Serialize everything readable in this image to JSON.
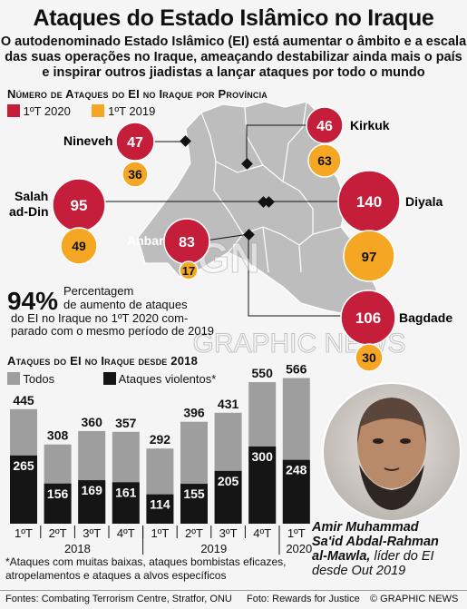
{
  "title": "Ataques do Estado Islâmico no Iraque",
  "subtitle_lines": [
    "O autodenominado Estado Islâmico (EI) está aumentar o âmbito e a escala",
    "das suas operações no Iraque, ameaçando destabilizar ainda mais o país",
    "e inspirar outros jiadistas a lançar ataques por todo o mundo"
  ],
  "colors": {
    "red": "#c41e3a",
    "orange": "#f5a623",
    "dark": "#151515",
    "grey": "#9e9e9e",
    "map": "#bdbdbd"
  },
  "map": {
    "heading": "Número de Ataques do EI no Iraque por Província",
    "legend": [
      "1ºT 2020",
      "1ºT 2019"
    ],
    "provinces": [
      {
        "name": "Nineveh",
        "q1_2020": 47,
        "q1_2019": 36
      },
      {
        "name": "Kirkuk",
        "q1_2020": 46,
        "q1_2019": 63
      },
      {
        "name_lines": [
          "Salah",
          "ad-Din"
        ],
        "q1_2020": 95,
        "q1_2019": 49
      },
      {
        "name": "Diyala",
        "q1_2020": 140,
        "q1_2019": 97
      },
      {
        "name": "Anbar",
        "q1_2020": 83,
        "q1_2019": 17
      },
      {
        "name": "Bagdade",
        "q1_2020": 106,
        "q1_2019": 30
      }
    ],
    "stat": {
      "value": "94%",
      "lines": [
        "Percentagem",
        "de aumento de ataques",
        "do EI no Iraque no 1ºT 2020 com-",
        "parado com o mesmo período de 2019"
      ]
    }
  },
  "chart_data": {
    "type": "bar",
    "title": "Ataques do EI no Iraque desde 2018",
    "categories": [
      "1ºT",
      "2ºT",
      "3ºT",
      "4ºT",
      "1ºT",
      "2ºT",
      "3ºT",
      "4ºT",
      "1ºT"
    ],
    "years": [
      {
        "label": "2018",
        "quarters": 4
      },
      {
        "label": "2019",
        "quarters": 4
      },
      {
        "label": "2020",
        "quarters": 1
      }
    ],
    "series": [
      {
        "name": "Todos",
        "values": [
          445,
          308,
          360,
          357,
          292,
          396,
          431,
          550,
          566
        ]
      },
      {
        "name": "Ataques violentos*",
        "values": [
          265,
          156,
          169,
          161,
          114,
          155,
          205,
          300,
          248
        ]
      }
    ],
    "ylim": [
      0,
      600
    ]
  },
  "caption": {
    "name_lines": [
      "Amir Muhammad",
      "Sa'id Abdal-Rahman",
      "al-Mawla,"
    ],
    "rest": " líder do EI desde Out 2019"
  },
  "footnote": "*Ataques com muitas baixas, ataques bombistas eficazes, atropelamentos e ataques a alvos específicos",
  "footer": {
    "sources": "Fontes: Combating Terrorism Centre, Stratfor, ONU",
    "photo": "Foto: Rewards for Justice",
    "copyright": "© GRAPHIC NEWS"
  },
  "watermark": "GRAPHIC NEWS"
}
